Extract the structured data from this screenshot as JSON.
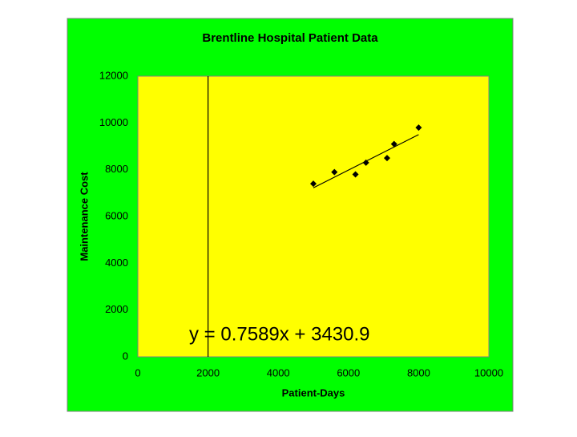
{
  "chart_data": {
    "type": "scatter",
    "title": "Brentline Hospital Patient Data",
    "x_label": "Patient-Days",
    "y_label": "Maintenance Cost",
    "series": [
      {
        "name": "Maintenance Cost",
        "color": "#000000",
        "x": [
          5000,
          5600,
          6200,
          6500,
          7100,
          7300,
          8000
        ],
        "values": [
          7400,
          7900,
          7800,
          8300,
          8500,
          9100,
          9800
        ]
      }
    ],
    "trendline": {
      "slope": 0.7589,
      "intercept": 3430.9,
      "label": "y = 0.7589x + 3430.9",
      "color": "#000000"
    },
    "reference_line_x": 2000,
    "xlim": [
      0,
      10000
    ],
    "xticks": [
      0,
      2000,
      4000,
      6000,
      8000,
      10000
    ],
    "ylim": [
      0,
      12000
    ],
    "yticks": [
      0,
      2000,
      4000,
      6000,
      8000,
      10000,
      12000
    ],
    "grid": false,
    "background_color": "#00ff00",
    "plot_color": "#ffff00"
  }
}
